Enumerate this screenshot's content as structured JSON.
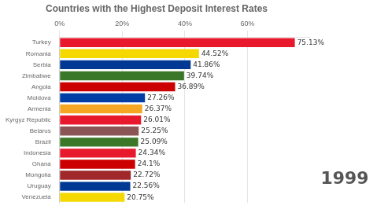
{
  "chart_data": {
    "type": "bar",
    "orientation": "horizontal",
    "title": "Countries with the Highest Deposit Interest Rates",
    "annotations": [
      "1999"
    ],
    "categories": [
      "Turkey",
      "Romania",
      "Serbia",
      "Zimbabwe",
      "Angola",
      "Moldova",
      "Armenia",
      "Kyrgyz Republic",
      "Belarus",
      "Brazil",
      "Indonesia",
      "Ghana",
      "Mongolia",
      "Uruguay",
      "Venezuela"
    ],
    "values": [
      75.13,
      44.52,
      41.86,
      39.74,
      36.89,
      27.26,
      26.37,
      26.01,
      25.25,
      25.09,
      24.34,
      24.1,
      22.72,
      22.56,
      20.75
    ],
    "value_labels": [
      "75.13%",
      "44.52%",
      "41.86%",
      "39.74%",
      "36.89%",
      "27.26%",
      "26.37%",
      "26.01%",
      "25.25%",
      "25.09%",
      "24.34%",
      "24.1%",
      "22.72%",
      "22.56%",
      "20.75%"
    ],
    "colors": [
      "#e8192c",
      "#f5d800",
      "#003893",
      "#3a7728",
      "#cc0000",
      "#003DA5",
      "#f5a623",
      "#e8192c",
      "#8B5555",
      "#3a7728",
      "#e8192c",
      "#cc0000",
      "#a0272a",
      "#003893",
      "#f5d800"
    ],
    "xlim": [
      0,
      80
    ],
    "xticks": [
      {
        "value": 0,
        "label": "0%"
      },
      {
        "value": 20,
        "label": "20%"
      },
      {
        "value": 40,
        "label": "40%"
      },
      {
        "value": 60,
        "label": "60%"
      }
    ],
    "grid": true,
    "data_labels": true
  }
}
